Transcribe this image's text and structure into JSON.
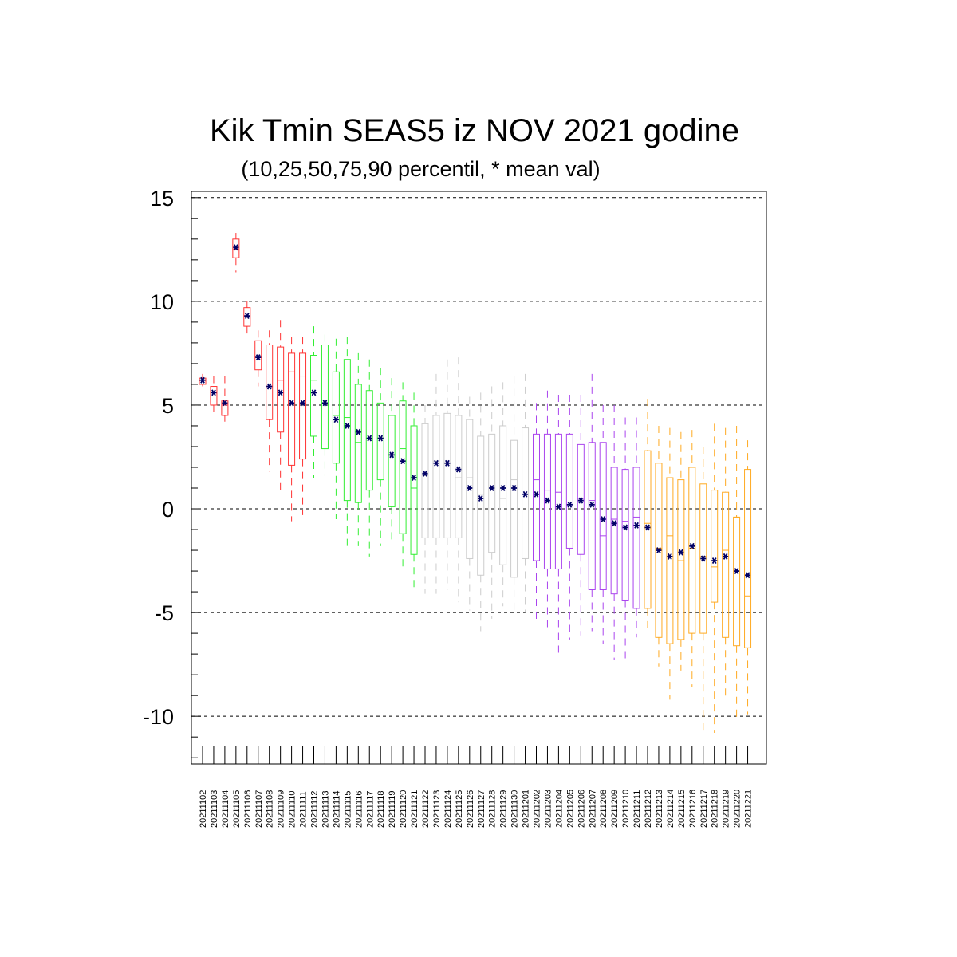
{
  "chart_data": {
    "type": "box",
    "title": "Kik Tmin SEAS5 iz NOV 2021 godine",
    "subtitle": "(10,25,50,75,90 percentil, * mean val)",
    "ylim": [
      -12.3,
      15.3
    ],
    "yticks": [
      15,
      10,
      5,
      0,
      -5,
      -10
    ],
    "ytick_labels": [
      "15",
      "10",
      "5",
      "0",
      "-5",
      "-10"
    ],
    "grid": "horizontal-dashed",
    "categories": [
      "20211102",
      "20211103",
      "20211104",
      "20211105",
      "20211106",
      "20211107",
      "20211108",
      "20211109",
      "20211110",
      "20211111",
      "20211112",
      "20211113",
      "20211114",
      "20211115",
      "20211116",
      "20211117",
      "20211118",
      "20211119",
      "20211120",
      "20211121",
      "20211122",
      "20211123",
      "20211124",
      "20211125",
      "20211126",
      "20211127",
      "20211128",
      "20211129",
      "20211130",
      "20211201",
      "20211202",
      "20211203",
      "20211204",
      "20211205",
      "20211206",
      "20211207",
      "20211208",
      "20211209",
      "20211210",
      "20211211",
      "20211212",
      "20211213",
      "20211214",
      "20211215",
      "20211216",
      "20211217",
      "20211218",
      "20211219",
      "20211220",
      "20211221"
    ],
    "colors": {
      "month1": "#ff3333",
      "month2": "#33ee33",
      "month3": "#cccccc",
      "month4": "#aa44ee",
      "month5": "#ffaa22",
      "mean": "#000066",
      "grid": "#000000"
    },
    "color_groups": [
      {
        "color": "month1",
        "count": 10
      },
      {
        "color": "month2",
        "count": 10
      },
      {
        "color": "month3",
        "count": 10
      },
      {
        "color": "month4",
        "count": 10
      },
      {
        "color": "month5",
        "count": 10
      }
    ],
    "p10": [
      5.9,
      4.6,
      4.2,
      11.4,
      8.4,
      5.9,
      1.8,
      0.8,
      -0.6,
      -0.3,
      1.5,
      1.6,
      -0.5,
      -1.9,
      -1.8,
      -2.3,
      -1.8,
      -1.7,
      -2.8,
      -3.9,
      -4.1,
      -4.1,
      -3.9,
      -4.5,
      -4.9,
      -5.9,
      -5.3,
      -4.7,
      -5.2,
      -5.0,
      -5.4,
      -5.8,
      -7.1,
      -6.3,
      -6.1,
      -5.9,
      -6.5,
      -7.3,
      -7.4,
      -6.2,
      -6.0,
      -7.6,
      -9.2,
      -7.8,
      -8.6,
      -10.7,
      -10.8,
      -9.1,
      -10.2,
      -9.9
    ],
    "p25": [
      6.0,
      5.0,
      4.5,
      12.1,
      8.8,
      6.7,
      4.3,
      3.7,
      2.1,
      2.4,
      3.5,
      2.9,
      2.2,
      0.4,
      0.3,
      0.9,
      1.4,
      0.1,
      -1.2,
      -2.2,
      -1.4,
      -1.4,
      -1.4,
      -1.4,
      -2.4,
      -3.2,
      -2.1,
      -2.7,
      -3.3,
      -2.4,
      -2.5,
      -2.9,
      -2.9,
      -1.9,
      -2.2,
      -3.9,
      -3.9,
      -4.1,
      -4.4,
      -4.8,
      -4.8,
      -6.2,
      -6.5,
      -6.3,
      -6.0,
      -6.0,
      -4.5,
      -6.2,
      -6.6,
      -6.7
    ],
    "p50": [
      6.2,
      5.6,
      5.0,
      12.5,
      9.3,
      7.3,
      5.9,
      6.2,
      6.6,
      6.4,
      6.2,
      5.1,
      4.5,
      4.4,
      3.2,
      3.4,
      3.4,
      2.6,
      2.9,
      1.0,
      1.6,
      2.3,
      2.2,
      1.5,
      1.5,
      0.7,
      1.0,
      0.5,
      1.4,
      0.7,
      1.4,
      0.9,
      0.8,
      0.2,
      0.5,
      0.4,
      -1.3,
      -0.5,
      -0.6,
      -0.4,
      -0.7,
      -1.9,
      -1.3,
      -2.5,
      -1.9,
      -2.3,
      -2.8,
      -2.0,
      -0.4,
      -4.2
    ],
    "p75": [
      6.3,
      5.9,
      5.2,
      13.0,
      9.7,
      8.1,
      7.9,
      7.8,
      7.5,
      7.5,
      7.4,
      7.9,
      6.6,
      7.2,
      6.0,
      5.7,
      5.1,
      4.5,
      5.2,
      4.0,
      4.1,
      4.5,
      4.6,
      4.5,
      4.3,
      3.5,
      3.6,
      4.0,
      3.3,
      3.9,
      3.6,
      3.6,
      3.6,
      3.6,
      3.1,
      3.2,
      3.2,
      2.0,
      1.9,
      2.0,
      2.8,
      2.2,
      1.5,
      1.4,
      2.0,
      1.2,
      0.9,
      0.8,
      -0.4,
      1.9
    ],
    "p90": [
      6.5,
      6.4,
      6.4,
      13.3,
      10.0,
      8.6,
      8.6,
      9.1,
      8.3,
      8.3,
      8.8,
      8.4,
      8.2,
      8.3,
      7.5,
      7.2,
      6.8,
      6.3,
      6.1,
      5.6,
      5.0,
      6.5,
      7.2,
      7.3,
      5.4,
      5.6,
      5.9,
      6.1,
      6.4,
      6.5,
      5.1,
      5.7,
      5.5,
      5.5,
      5.5,
      6.5,
      5.0,
      5.0,
      4.4,
      4.4,
      5.3,
      4.0,
      3.9,
      3.7,
      3.8,
      3.0,
      4.1,
      3.9,
      4.0,
      3.3
    ],
    "mean": [
      6.2,
      5.6,
      5.1,
      12.6,
      9.3,
      7.3,
      5.9,
      5.6,
      5.1,
      5.1,
      5.6,
      5.1,
      4.3,
      4.0,
      3.7,
      3.4,
      3.4,
      2.6,
      2.3,
      1.5,
      1.7,
      2.2,
      2.2,
      1.9,
      1.0,
      0.5,
      1.0,
      1.0,
      1.0,
      0.7,
      0.7,
      0.4,
      0.1,
      0.2,
      0.4,
      0.2,
      -0.5,
      -0.7,
      -0.9,
      -0.8,
      -0.9,
      -2.0,
      -2.3,
      -2.1,
      -1.8,
      -2.4,
      -2.5,
      -2.3,
      -3.0,
      -3.2
    ]
  }
}
